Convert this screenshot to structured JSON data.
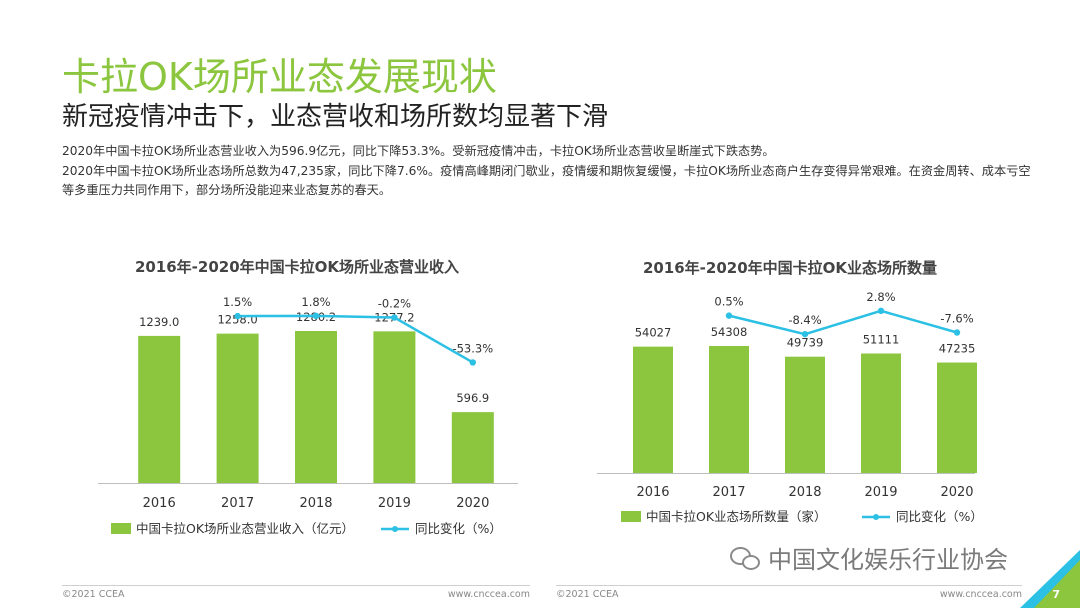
{
  "header": {
    "title": "卡拉OK场所业态发展现状",
    "subtitle": "新冠疫情冲击下，业态营收和场所数均显著下滑",
    "paragraph1": "2020年中国卡拉OK场所业态营业收入为596.9亿元，同比下降53.3%。受新冠疫情冲击，卡拉OK场所业态营收呈断崖式下跌态势。",
    "paragraph2": "2020年中国卡拉OK场所业态场所总数为47,235家，同比下降7.6%。疫情高峰期闭门歇业，疫情缓和期恢复缓慢，卡拉OK场所业态商户生存变得异常艰难。在资金周转、成本亏空等多重压力共同作用下，部分场所没能迎来业态复苏的春天。"
  },
  "colors": {
    "bar": "#8CC63F",
    "line": "#2BC0E4",
    "title": "#8CC63F"
  },
  "chart_data": [
    {
      "type": "bar",
      "title": "2016年-2020年中国卡拉OK场所业态营业收入",
      "categories": [
        "2016",
        "2017",
        "2018",
        "2019",
        "2020"
      ],
      "series": [
        {
          "name": "中国卡拉OK场所业态营业收入（亿元）",
          "type": "bar",
          "values": [
            1239.0,
            1258.0,
            1280.2,
            1277.2,
            596.9
          ],
          "labels": [
            "1239.0",
            "1258.0",
            "1280.2",
            "1277.2",
            "596.9"
          ]
        },
        {
          "name": "同比变化（%）",
          "type": "line",
          "x": [
            "2017",
            "2018",
            "2019",
            "2020"
          ],
          "values": [
            1.5,
            1.8,
            -0.2,
            -53.3
          ],
          "labels": [
            "1.5%",
            "1.8%",
            "-0.2%",
            "-53.3%"
          ]
        }
      ],
      "ylim": [
        0,
        1400
      ],
      "line_ylim": [
        -80,
        30
      ],
      "legend_position": "bottom"
    },
    {
      "type": "bar",
      "title": "2016年-2020年中国卡拉OK业态场所数量",
      "categories": [
        "2016",
        "2017",
        "2018",
        "2019",
        "2020"
      ],
      "series": [
        {
          "name": "中国卡拉OK业态场所数量（家）",
          "type": "bar",
          "values": [
            54027,
            54308,
            49739,
            51111,
            47235
          ],
          "labels": [
            "54027",
            "54308",
            "49739",
            "51111",
            "47235"
          ]
        },
        {
          "name": "同比变化（%）",
          "type": "line",
          "x": [
            "2017",
            "2018",
            "2019",
            "2020"
          ],
          "values": [
            0.5,
            -8.4,
            2.8,
            -7.6
          ],
          "labels": [
            "0.5%",
            "-8.4%",
            "2.8%",
            "-7.6%"
          ]
        }
      ],
      "ylim": [
        0,
        75000
      ],
      "line_ylim": [
        -16,
        8
      ],
      "legend_position": "bottom"
    }
  ],
  "footer": {
    "left_copyright": "©2021 CCEA",
    "left_url": "www.cnccea.com",
    "right_copyright": "©2021 CCEA",
    "right_url": "www.cnccea.com",
    "page_number": "7"
  },
  "watermark": {
    "icon": "wechat-icon",
    "text": "中国文化娱乐行业协会"
  }
}
